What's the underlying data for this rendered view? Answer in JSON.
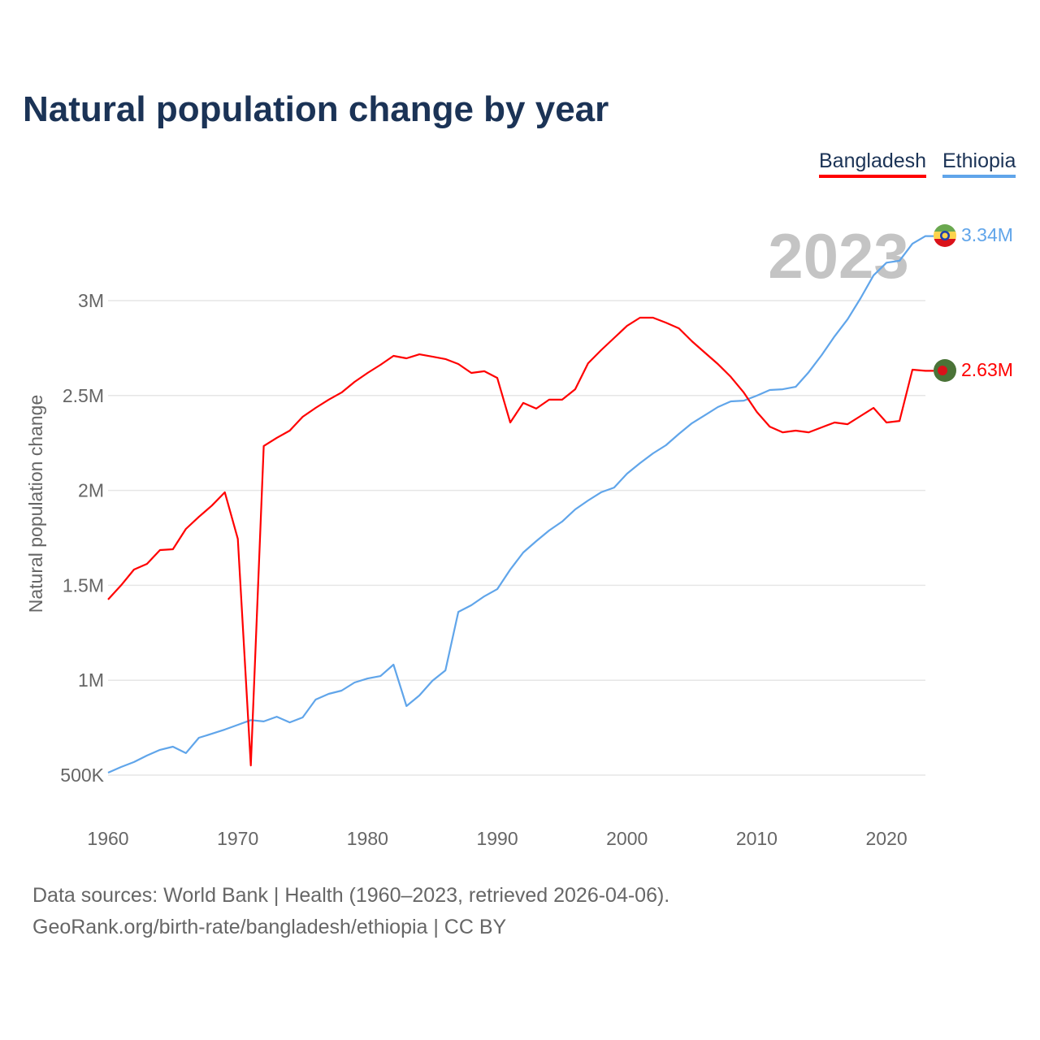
{
  "chart_data": {
    "type": "line",
    "title": "Natural population change by year",
    "xlabel": "",
    "ylabel": "Natural population change",
    "xlim": [
      1960,
      2023
    ],
    "ylim": [
      0.5,
      3.35
    ],
    "x_ticks": [
      1960,
      1970,
      1980,
      1990,
      2000,
      2010,
      2020
    ],
    "y_ticks": [
      {
        "v": 0.5,
        "label": "500K"
      },
      {
        "v": 1,
        "label": "1M"
      },
      {
        "v": 1.5,
        "label": "1.5M"
      },
      {
        "v": 2,
        "label": "2M"
      },
      {
        "v": 2.5,
        "label": "2.5M"
      },
      {
        "v": 3,
        "label": "3M"
      }
    ],
    "grid": true,
    "legend_position": "top-right",
    "current_year": "2023",
    "x_start": 1960,
    "series": [
      {
        "name": "Bangladesh",
        "color": "#ff0000",
        "end_label": "2.63M",
        "flag": "bangladesh-flag",
        "values": [
          1.425,
          1.5,
          1.583,
          1.613,
          1.686,
          1.69,
          1.797,
          1.861,
          1.92,
          1.99,
          1.745,
          0.551,
          2.234,
          2.277,
          2.315,
          2.388,
          2.435,
          2.478,
          2.516,
          2.572,
          2.619,
          2.662,
          2.709,
          2.696,
          2.717,
          2.705,
          2.692,
          2.666,
          2.619,
          2.628,
          2.593,
          2.358,
          2.461,
          2.431,
          2.478,
          2.478,
          2.533,
          2.67,
          2.739,
          2.803,
          2.867,
          2.91,
          2.91,
          2.884,
          2.854,
          2.786,
          2.726,
          2.666,
          2.598,
          2.516,
          2.414,
          2.336,
          2.306,
          2.315,
          2.306,
          2.332,
          2.358,
          2.349,
          2.392,
          2.435,
          2.358,
          2.366,
          2.636,
          2.63
        ]
      },
      {
        "name": "Ethiopia",
        "color": "#60a5ea",
        "end_label": "3.34M",
        "flag": "ethiopia-flag",
        "values": [
          0.513,
          0.543,
          0.569,
          0.603,
          0.633,
          0.65,
          0.616,
          0.697,
          0.718,
          0.74,
          0.765,
          0.79,
          0.783,
          0.808,
          0.778,
          0.804,
          0.898,
          0.928,
          0.945,
          0.988,
          1.009,
          1.022,
          1.082,
          0.864,
          0.92,
          0.997,
          1.052,
          1.36,
          1.395,
          1.442,
          1.48,
          1.583,
          1.673,
          1.733,
          1.789,
          1.836,
          1.9,
          1.947,
          1.99,
          2.015,
          2.088,
          2.144,
          2.195,
          2.238,
          2.298,
          2.354,
          2.396,
          2.439,
          2.469,
          2.473,
          2.499,
          2.529,
          2.533,
          2.546,
          2.623,
          2.713,
          2.812,
          2.902,
          3.013,
          3.133,
          3.2,
          3.21,
          3.3,
          3.34
        ]
      }
    ]
  },
  "footer": {
    "line1": "Data sources: World Bank | Health (1960–2023, retrieved 2026-04-06).",
    "line2": "GeoRank.org/birth-rate/bangladesh/ethiopia | CC BY"
  }
}
